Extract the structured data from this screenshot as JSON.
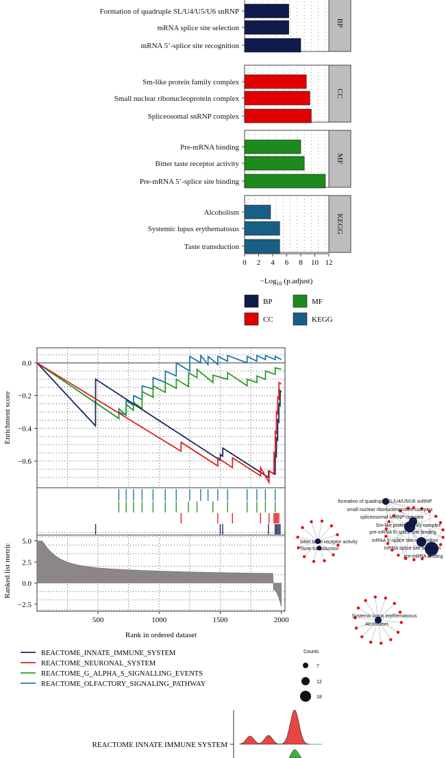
{
  "colors": {
    "BP": "#0f1b4c",
    "CC": "#e00000",
    "MF": "#1e8a1e",
    "KEGG": "#185f85",
    "innate": "#1b2a5c",
    "neuronal": "#e02020",
    "galpha": "#2a9a2a",
    "olfactory": "#1f77a6",
    "ranked": "#8c8686",
    "facet_strip": "#bdbdbd"
  },
  "chart_data": [
    {
      "type": "bar",
      "orientation": "horizontal",
      "xlabel_prefix": "−Log",
      "xlabel_sub": "10",
      "xlabel_suffix": " (p.adjust)",
      "xlim": [
        0,
        12
      ],
      "xticks": [
        0,
        2,
        4,
        6,
        8,
        10,
        12
      ],
      "facets": [
        {
          "name": "BP",
          "categories": [
            "Formation of quadruple SL/U4/U5/U6 snRNP",
            "mRNA splice site selection",
            "mRNA 5’-splice site recognition"
          ],
          "values": [
            6.3,
            6.3,
            8.0
          ]
        },
        {
          "name": "CC",
          "categories": [
            "Sm-like protein family complex",
            "Small nuclear ribonucleoprotein complex",
            "Spliceosomal snRNP complex"
          ],
          "values": [
            8.8,
            9.3,
            9.5
          ]
        },
        {
          "name": "MF",
          "categories": [
            "Pre-mRNA binding",
            "Bitter taste receptor activity",
            "Pre-mRNA 5’-splice site binding"
          ],
          "values": [
            8.0,
            8.5,
            11.5
          ]
        },
        {
          "name": "KEGG",
          "categories": [
            "Alcoholism",
            "Systemic lupus erythematosus",
            "Taste transduction"
          ],
          "values": [
            3.7,
            5.0,
            5.0
          ]
        }
      ],
      "legend": [
        "BP",
        "MF",
        "CC",
        "KEGG"
      ]
    },
    {
      "type": "line",
      "subtype": "gsea_running_enrichment",
      "ylabel": "Enrichment score",
      "xlabel": "Rank in ordered dataset",
      "ylim": [
        -0.75,
        0.05
      ],
      "yticks": [
        0.0,
        -0.2,
        -0.4,
        -0.6
      ],
      "yticklabels": [
        "0.0",
        "−0.2",
        "−0.4",
        "−0.6"
      ],
      "xlim": [
        0,
        2000
      ],
      "xticks": [
        500,
        1000,
        1500,
        2000
      ],
      "series": [
        {
          "name": "REACTOME_INNATE_IMMUNE_SYSTEM",
          "key": "innate",
          "x": [
            0,
            479,
            480,
            1500,
            1501,
            1520,
            1521,
            1895,
            1896,
            1950,
            1951,
            1960,
            1961,
            1970,
            1971,
            1980,
            1981,
            1990,
            1991,
            2000
          ],
          "y": [
            0,
            -0.385,
            -0.1,
            -0.595,
            -0.56,
            -0.57,
            -0.52,
            -0.7,
            -0.66,
            -0.68,
            -0.56,
            -0.57,
            -0.46,
            -0.47,
            -0.35,
            -0.36,
            -0.25,
            -0.26,
            -0.17,
            -0.18
          ],
          "hits": [
            480,
            1500,
            1520,
            1895,
            1950,
            1960,
            1970,
            1980,
            1990
          ]
        },
        {
          "name": "REACTOME_NEURONAL_SYSTEM",
          "key": "neuronal",
          "x": [
            0,
            1179,
            1180,
            1480,
            1481,
            1600,
            1601,
            1830,
            1831,
            1900,
            1901,
            1940,
            1941,
            1950,
            1951,
            1960,
            1961,
            1970,
            1971,
            1980,
            1981,
            2000
          ],
          "y": [
            0,
            -0.54,
            -0.485,
            -0.63,
            -0.58,
            -0.64,
            -0.58,
            -0.69,
            -0.64,
            -0.73,
            -0.66,
            -0.68,
            -0.55,
            -0.56,
            -0.42,
            -0.43,
            -0.3,
            -0.31,
            -0.21,
            -0.22,
            -0.12,
            -0.13
          ],
          "hits": [
            1180,
            1480,
            1600,
            1830,
            1900,
            1940,
            1950,
            1960,
            1970,
            1980
          ]
        },
        {
          "name": "REACTOME_G_ALPHA_S_SIGNALLING_EVENTS",
          "key": "galpha",
          "x": [
            0,
            670,
            671,
            730,
            731,
            790,
            791,
            860,
            861,
            950,
            951,
            1050,
            1051,
            1140,
            1141,
            1240,
            1241,
            1310,
            1311,
            1440,
            1441,
            1560,
            1561,
            1720,
            1721,
            1800,
            1801,
            1870,
            1871,
            1950,
            1951,
            2000
          ],
          "y": [
            0,
            -0.34,
            -0.28,
            -0.32,
            -0.255,
            -0.29,
            -0.24,
            -0.28,
            -0.175,
            -0.21,
            -0.14,
            -0.18,
            -0.12,
            -0.155,
            -0.1,
            -0.145,
            -0.06,
            -0.09,
            -0.04,
            -0.12,
            -0.075,
            -0.1,
            -0.06,
            -0.14,
            -0.1,
            -0.12,
            -0.08,
            -0.1,
            -0.05,
            -0.07,
            -0.03,
            -0.04
          ],
          "hits": [
            670,
            730,
            790,
            860,
            950,
            1050,
            1140,
            1240,
            1310,
            1440,
            1560,
            1720,
            1800,
            1870,
            1950
          ]
        },
        {
          "name": "REACTOME_OLFACTORY_SIGNALING_PATHWAY",
          "key": "olfactory",
          "x": [
            0,
            670,
            671,
            730,
            731,
            790,
            791,
            860,
            861,
            950,
            951,
            1050,
            1051,
            1140,
            1141,
            1250,
            1251,
            1340,
            1341,
            1400,
            1401,
            1480,
            1481,
            1560,
            1561,
            1720,
            1721,
            1800,
            1801,
            1870,
            1871,
            1950,
            1951,
            2000
          ],
          "y": [
            0,
            -0.34,
            -0.3,
            -0.32,
            -0.23,
            -0.26,
            -0.2,
            -0.225,
            -0.14,
            -0.16,
            -0.09,
            -0.12,
            -0.05,
            -0.08,
            0.0,
            -0.05,
            0.04,
            0.0,
            0.045,
            -0.01,
            0.04,
            -0.01,
            0.04,
            0.01,
            0.045,
            0.0,
            0.04,
            0.01,
            0.045,
            0.02,
            0.045,
            0.02,
            0.04,
            0.02
          ],
          "hits": [
            670,
            730,
            790,
            860,
            950,
            1050,
            1140,
            1250,
            1340,
            1400,
            1480,
            1560,
            1720,
            1800,
            1870,
            1950
          ]
        }
      ],
      "ranked_list": {
        "ylabel": "Ranked list metric",
        "yticks": [
          5.0,
          2.5,
          0.0,
          -2.5
        ],
        "yticklabels": [
          "5.0",
          "2.5",
          "0.0",
          "−2.5"
        ],
        "ylim": [
          -3.5,
          7.0
        ],
        "start": 5.0,
        "plateau": 1.0,
        "end": -2.8
      }
    },
    {
      "type": "scatter",
      "subtype": "gene_concept_network",
      "terms": [
        {
          "label": "formation of quadruple SL/U4/U5/U6 snRNP"
        },
        {
          "label": "small nuclear ribonucleoprotein complex"
        },
        {
          "label": "spliceosomal snRNP complex"
        },
        {
          "label": "Sm-like protein family complex"
        },
        {
          "label": "pre-mRNA 5'-splice site binding"
        },
        {
          "label": "mRNA 5'-splice site recognition"
        },
        {
          "label": "mRNA splice site selection"
        },
        {
          "label": "pre-mRNA binding"
        },
        {
          "label": "bitter taste receptor activity"
        },
        {
          "label": "Taste transduction"
        },
        {
          "label": "Systemic lupus erythematosus"
        },
        {
          "label": "Alcoholism"
        }
      ],
      "size_legend_title": "Counts",
      "size_legend": [
        7,
        12,
        18
      ]
    },
    {
      "type": "area",
      "subtype": "ridgeline",
      "rows": [
        {
          "label": "REACTOME INNATE IMMUNE SYSTEM"
        }
      ]
    }
  ]
}
